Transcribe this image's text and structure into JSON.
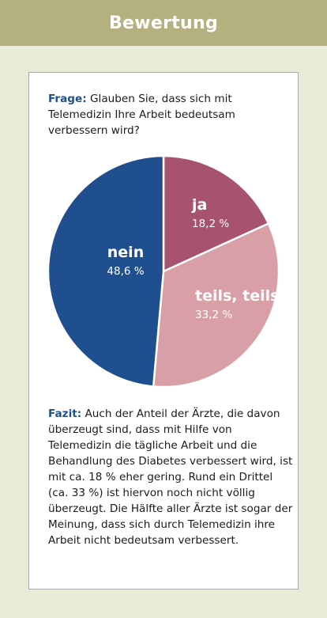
{
  "header": {
    "title": "Bewertung"
  },
  "question": {
    "keyword": "Frage:",
    "text": "Glauben Sie, dass sich mit Telemedizin Ihre Arbeit bedeutsam verbessern wird?"
  },
  "colors": {
    "header_bg": "#b4b07f",
    "page_bg": "#e9ead8",
    "keyword": "#1f4f8e",
    "nein": "#1f4f8e",
    "ja": "#a7536f",
    "teils": "#d8a0a6"
  },
  "chart_data": {
    "type": "pie",
    "title": "",
    "slices": [
      {
        "label": "ja",
        "value": 18.2,
        "value_label": "18,2 %",
        "color": "#a7536f"
      },
      {
        "label": "teils, teils",
        "value": 33.2,
        "value_label": "33,2 %",
        "color": "#d8a0a6"
      },
      {
        "label": "nein",
        "value": 48.6,
        "value_label": "48,6 %",
        "color": "#1f4f8e"
      }
    ]
  },
  "conclusion": {
    "keyword": "Fazit:",
    "text": "Auch der Anteil der Ärzte, die davon überzeugt sind, dass mit Hilfe von Telemedizin die tägliche Arbeit und die Behandlung des Diabetes verbessert wird, ist mit ca. 18 % eher gering. Rund ein Drittel (ca. 33 %) ist hiervon noch nicht völlig überzeugt. Die Hälfte aller Ärzte ist sogar der Meinung, dass sich durch Telemedizin ihre Arbeit nicht bedeutsam verbessert."
  }
}
